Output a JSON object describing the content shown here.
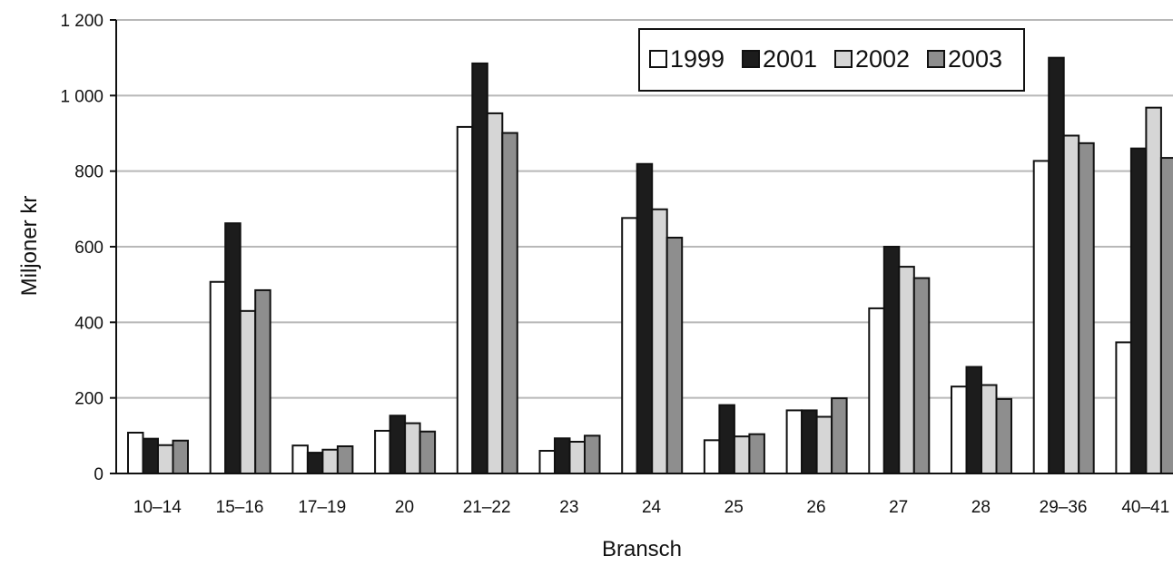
{
  "chart_data": {
    "type": "bar",
    "title": "",
    "xlabel": "Bransch",
    "ylabel": "Miljoner kr",
    "ylim": [
      0,
      1200
    ],
    "yticks": [
      0,
      200,
      400,
      600,
      800,
      1000,
      1200
    ],
    "ytick_labels": [
      "0",
      "200",
      "400",
      "600",
      "800",
      "1 000",
      "1 200"
    ],
    "grid": true,
    "legend_position": "top-right",
    "categories": [
      "10–14",
      "15–16",
      "17–19",
      "20",
      "21–22",
      "23",
      "24",
      "25",
      "26",
      "27",
      "28",
      "29–36",
      "40–41"
    ],
    "series": [
      {
        "name": "1999",
        "color": "#ffffff",
        "values": [
          108,
          507,
          74,
          113,
          917,
          60,
          676,
          88,
          167,
          437,
          230,
          827,
          347
        ]
      },
      {
        "name": "2001",
        "color": "#1c1c1c",
        "values": [
          92,
          662,
          55,
          153,
          1085,
          93,
          819,
          181,
          167,
          600,
          282,
          1100,
          860
        ]
      },
      {
        "name": "2002",
        "color": "#d6d6d6",
        "values": [
          75,
          430,
          63,
          133,
          953,
          84,
          699,
          98,
          150,
          547,
          234,
          894,
          968
        ]
      },
      {
        "name": "2003",
        "color": "#8e8e8e",
        "values": [
          87,
          485,
          72,
          111,
          901,
          100,
          624,
          104,
          199,
          517,
          197,
          874,
          835
        ]
      }
    ]
  }
}
